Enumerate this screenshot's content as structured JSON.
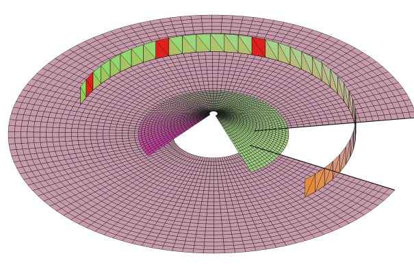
{
  "figure": {
    "subject": "",
    "colors": {
      "background": "#ffffff",
      "surface_base": "#c89aac",
      "grid_lines": "#151515",
      "accent_green": "#7ddc5a",
      "accent_red": "#e0201a",
      "accent_orange": "#e6892e",
      "accent_magenta": "#c23a9a"
    }
  }
}
